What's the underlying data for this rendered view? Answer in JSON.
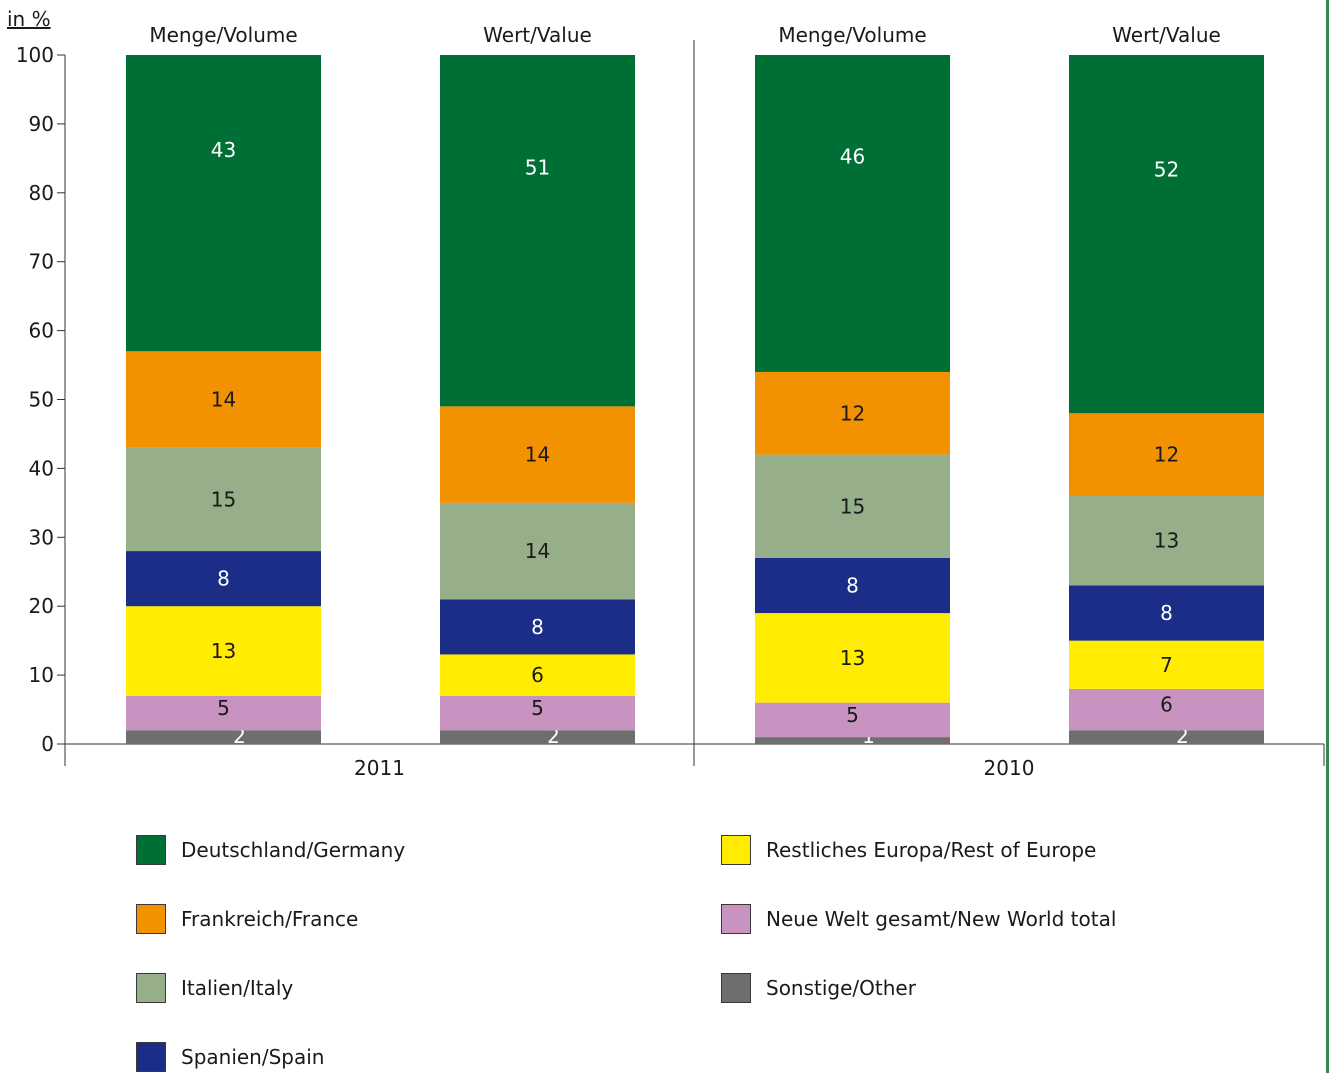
{
  "chart_data": {
    "type": "bar",
    "stacked": true,
    "unit_label": "in %",
    "ylim": [
      0,
      100
    ],
    "yticks": [
      0,
      10,
      20,
      30,
      40,
      50,
      60,
      70,
      80,
      90,
      100
    ],
    "groups": [
      "2011",
      "2010"
    ],
    "categories": [
      {
        "group": "2011",
        "label": "Menge/Volume"
      },
      {
        "group": "2011",
        "label": "Wert/Value"
      },
      {
        "group": "2010",
        "label": "Menge/Volume"
      },
      {
        "group": "2010",
        "label": "Wert/Value"
      }
    ],
    "series": [
      {
        "name": "Sonstige/Other",
        "color": "#6e6e6e",
        "values": [
          2,
          2,
          1,
          2
        ]
      },
      {
        "name": "Neue Welt gesamt/New World total",
        "color": "#c893c0",
        "values": [
          5,
          5,
          5,
          6
        ]
      },
      {
        "name": "Restliches Europa/Rest of Europe",
        "color": "#ffec00",
        "values": [
          13,
          6,
          13,
          7
        ]
      },
      {
        "name": "Spanien/Spain",
        "color": "#1b2d87",
        "values": [
          8,
          8,
          8,
          8
        ]
      },
      {
        "name": "Italien/Italy",
        "color": "#96ae8a",
        "values": [
          15,
          14,
          15,
          13
        ]
      },
      {
        "name": "Frankreich/France",
        "color": "#f39200",
        "values": [
          14,
          14,
          12,
          12
        ]
      },
      {
        "name": "Deutschland/Germany",
        "color": "#006f35",
        "values": [
          43,
          51,
          46,
          52
        ]
      }
    ],
    "legend_order": [
      "Deutschland/Germany",
      "Frankreich/France",
      "Italien/Italy",
      "Spanien/Spain",
      "Restliches Europa/Rest of Europe",
      "Neue Welt gesamt/New World total",
      "Sonstige/Other"
    ],
    "legend_position": "bottom",
    "grid": false
  }
}
